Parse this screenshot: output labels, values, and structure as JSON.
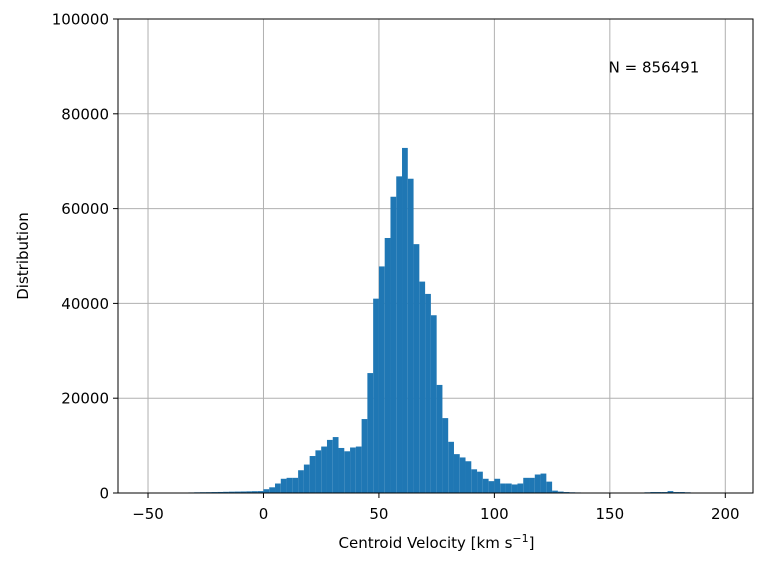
{
  "chart_data": {
    "type": "bar",
    "subtype": "histogram",
    "xlabel": "Centroid Velocity [km s",
    "xlabel_exponent": "−1",
    "xlabel_suffix": "]",
    "ylabel": "Distribution",
    "xlim": [
      -63,
      212
    ],
    "ylim": [
      0,
      100000
    ],
    "xticks": [
      -50,
      0,
      50,
      100,
      150,
      200
    ],
    "xtick_labels": [
      "−50",
      "0",
      "50",
      "100",
      "150",
      "200"
    ],
    "yticks": [
      0,
      20000,
      40000,
      60000,
      80000,
      100000
    ],
    "ytick_labels": [
      "0",
      "20000",
      "40000",
      "60000",
      "80000",
      "100000"
    ],
    "grid": true,
    "bar_color": "#1f77b4",
    "annotation": "N = 856491",
    "bin_start": -50,
    "bin_width": 2.5,
    "values": [
      0,
      0,
      0,
      0,
      0,
      80,
      100,
      120,
      150,
      170,
      180,
      200,
      220,
      250,
      280,
      300,
      320,
      350,
      380,
      400,
      800,
      1200,
      2000,
      3000,
      3200,
      3200,
      4800,
      6000,
      7800,
      9000,
      9800,
      11200,
      11800,
      9500,
      8800,
      9600,
      9800,
      15600,
      25300,
      41000,
      47800,
      53800,
      62500,
      66800,
      72800,
      66300,
      52500,
      44600,
      42000,
      37500,
      22800,
      15800,
      10800,
      8200,
      7500,
      6700,
      5000,
      4500,
      3000,
      2500,
      3000,
      2000,
      2000,
      1800,
      2000,
      3200,
      3200,
      3900,
      4100,
      2400,
      500,
      300,
      200,
      150,
      120,
      100,
      80,
      60,
      50,
      40,
      30,
      20,
      15,
      10,
      0,
      100,
      150,
      200,
      200,
      200,
      400,
      200,
      200,
      150,
      100,
      50
    ]
  }
}
